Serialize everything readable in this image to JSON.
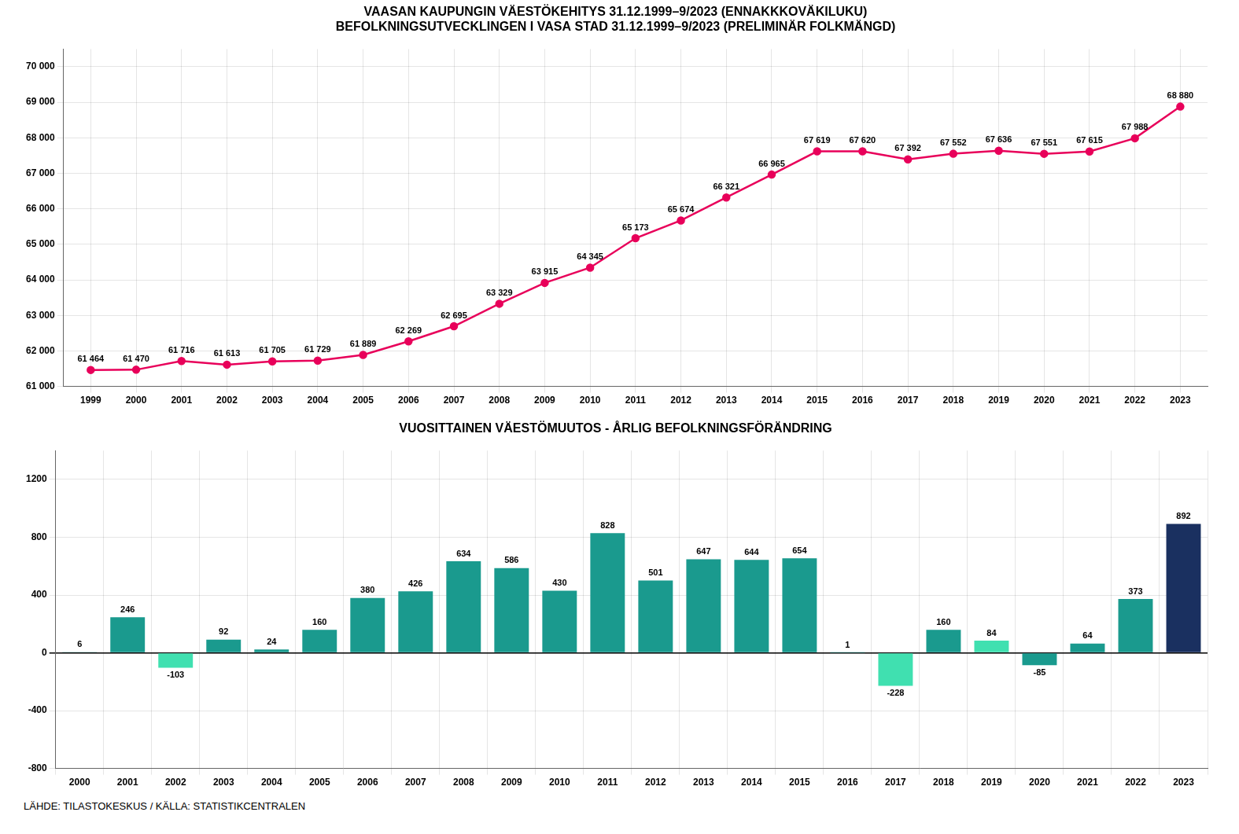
{
  "chart_data": [
    {
      "type": "line",
      "title": "VAASAN KAUPUNGIN VÄESTÖKEHITYS 31.12.1999–9/2023 (ENNAKKKOVÄKILUKU)\nBEFOLKNINGSUTVECKLINGEN I VASA STAD 31.12.1999–9/2023 (PRELIMINÄR FOLKMÄNGD)",
      "x": [
        1999,
        2000,
        2001,
        2002,
        2003,
        2004,
        2005,
        2006,
        2007,
        2008,
        2009,
        2010,
        2011,
        2012,
        2013,
        2014,
        2015,
        2016,
        2017,
        2018,
        2019,
        2020,
        2021,
        2022,
        2023
      ],
      "values": [
        61464,
        61470,
        61716,
        61613,
        61705,
        61729,
        61889,
        62269,
        62695,
        63329,
        63915,
        64345,
        65173,
        65674,
        66321,
        66965,
        67619,
        67620,
        67392,
        67552,
        67636,
        67551,
        67615,
        67988,
        68880
      ],
      "value_labels": [
        "61 464",
        "61 470",
        "61 716",
        "61 613",
        "61 705",
        "61 729",
        "61 889",
        "62 269",
        "62 695",
        "63 329",
        "63 915",
        "64 345",
        "65 173",
        "65 674",
        "66 321",
        "66 965",
        "67 619",
        "67 620",
        "67 392",
        "67 552",
        "67 636",
        "67 551",
        "67 615",
        "67 988",
        "68 880"
      ],
      "color": "#E8005A",
      "marker": "circle",
      "xlim": [
        1998.4,
        2023.6
      ],
      "xticks": [
        1999,
        2000,
        2001,
        2002,
        2003,
        2004,
        2005,
        2006,
        2007,
        2008,
        2009,
        2010,
        2011,
        2012,
        2013,
        2014,
        2015,
        2016,
        2017,
        2018,
        2019,
        2020,
        2021,
        2022,
        2023
      ],
      "ylim": [
        61000,
        70500
      ],
      "yticks": [
        {
          "value": 61000,
          "label": "61 000"
        },
        {
          "value": 62000,
          "label": "62 000"
        },
        {
          "value": 63000,
          "label": "63 000"
        },
        {
          "value": 64000,
          "label": "64 000"
        },
        {
          "value": 65000,
          "label": "65 000"
        },
        {
          "value": 66000,
          "label": "66 000"
        },
        {
          "value": 67000,
          "label": "67 000"
        },
        {
          "value": 68000,
          "label": "68 000"
        },
        {
          "value": 69000,
          "label": "69 000"
        },
        {
          "value": 70000,
          "label": "70 000"
        }
      ],
      "grid": true,
      "data_labels": true
    },
    {
      "type": "bar",
      "title": "VUOSITTAINEN VÄESTÖMUUTOS - ÅRLIG BEFOLKNINGSFÖRÄNDRING",
      "categories": [
        "2000",
        "2001",
        "2002",
        "2003",
        "2004",
        "2005",
        "2006",
        "2007",
        "2008",
        "2009",
        "2010",
        "2011",
        "2012",
        "2013",
        "2014",
        "2015",
        "2016",
        "2017",
        "2018",
        "2019",
        "2020",
        "2021",
        "2022",
        "2023"
      ],
      "values": [
        6,
        246,
        -103,
        92,
        24,
        160,
        380,
        426,
        634,
        586,
        430,
        828,
        501,
        647,
        644,
        654,
        1,
        -228,
        160,
        84,
        -85,
        64,
        373,
        892
      ],
      "colors": [
        "#1a9a8e",
        "#1a9a8e",
        "#40e0b0",
        "#1a9a8e",
        "#1a9a8e",
        "#1a9a8e",
        "#1a9a8e",
        "#1a9a8e",
        "#1a9a8e",
        "#1a9a8e",
        "#1a9a8e",
        "#1a9a8e",
        "#1a9a8e",
        "#1a9a8e",
        "#1a9a8e",
        "#1a9a8e",
        "#1a9a8e",
        "#40e0b0",
        "#1a9a8e",
        "#40e0b0",
        "#1a9a8e",
        "#1a9a8e",
        "#1a9a8e",
        "#1a3060"
      ],
      "ylim": [
        -800,
        1400
      ],
      "yticks": [
        -800,
        -400,
        0,
        400,
        800,
        1200
      ],
      "grid": true,
      "data_labels": true,
      "annotations": [
        "LÄHDE: TILASTOKESKUS / KÄLLA: STATISTIKCENTRALEN"
      ]
    }
  ]
}
